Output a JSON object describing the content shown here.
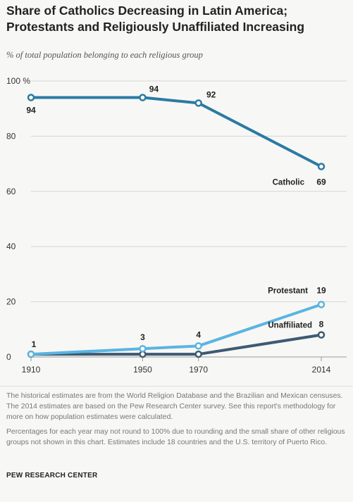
{
  "title_line1": "Share of Catholics Decreasing in Latin America;",
  "title_line2": "Protestants and Religiously Unaffiliated Increasing",
  "subtitle": "% of total population belonging to each religious group",
  "notes": [
    "The historical estimates are from the World Religion Database and the Brazilian and Mexican censuses. The 2014 estimates are based on the Pew Research Center survey. See this report's methodology for more on how population estimates were calculated.",
    "Percentages for each year may not round to 100% due to rounding and the small share of other religious groups not shown in this chart. Estimates include 18 countries and the U.S. territory of Puerto Rico."
  ],
  "source": "PEW RESEARCH CENTER",
  "colors": {
    "catholic": "#2b7aa3",
    "protestant": "#5ab4e2",
    "unaffiliated": "#3d5a73",
    "grid": "#d6d6d6"
  },
  "chart_data": {
    "type": "line",
    "title": "Share of Catholics Decreasing in Latin America; Protestants and Religiously Unaffiliated Increasing",
    "subtitle": "% of total population belonging to each religious group",
    "x": [
      1910,
      1950,
      1970,
      2014
    ],
    "x_tick_labels": [
      "1910",
      "1950",
      "1970",
      "2014"
    ],
    "y_tick_labels": [
      "100 %",
      "80",
      "60",
      "40",
      "20",
      "0"
    ],
    "y_ticks": [
      100,
      80,
      60,
      40,
      20,
      0
    ],
    "ylim": [
      0,
      100
    ],
    "grid": true,
    "series": [
      {
        "name": "Catholic",
        "values": [
          94,
          94,
          92,
          69
        ],
        "data_labels": [
          "94",
          "94",
          "92",
          "69"
        ],
        "color": "#2b7aa3"
      },
      {
        "name": "Protestant",
        "values": [
          1,
          3,
          4,
          19
        ],
        "data_labels": [
          "1",
          "3",
          "4",
          "19"
        ],
        "color": "#5ab4e2"
      },
      {
        "name": "Unaffiliated",
        "values": [
          1,
          1,
          1,
          8
        ],
        "data_labels": [
          "",
          "",
          "",
          "8"
        ],
        "color": "#3d5a73"
      }
    ]
  }
}
